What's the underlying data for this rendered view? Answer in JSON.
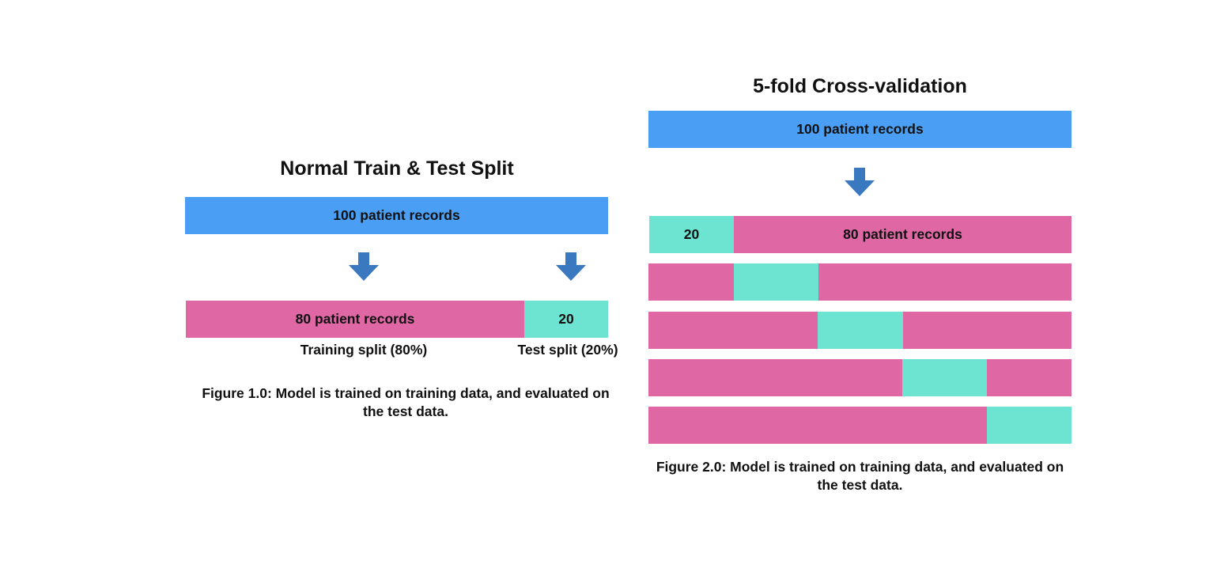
{
  "left": {
    "title": "Normal Train & Test Split",
    "top_bar_label": "100 patient records",
    "train_label": "80 patient records",
    "test_label": "20",
    "train_caption": "Training split (80%)",
    "test_caption": "Test split (20%)",
    "figure_caption": "Figure 1.0: Model is trained on training data, and evaluated on the test data."
  },
  "right": {
    "title": "5-fold Cross-validation",
    "top_bar_label": "100 patient records",
    "fold1_test_label": "20",
    "fold1_train_label": "80 patient records",
    "folds": 5,
    "figure_caption": "Figure 2.0: Model is trained on training data, and evaluated on the test data."
  },
  "colors": {
    "records": "#4a9ff5",
    "train": "#de67a4",
    "test": "#6de3d2",
    "arrow": "#3a78c0"
  },
  "icons": [
    "down-arrow-icon"
  ]
}
